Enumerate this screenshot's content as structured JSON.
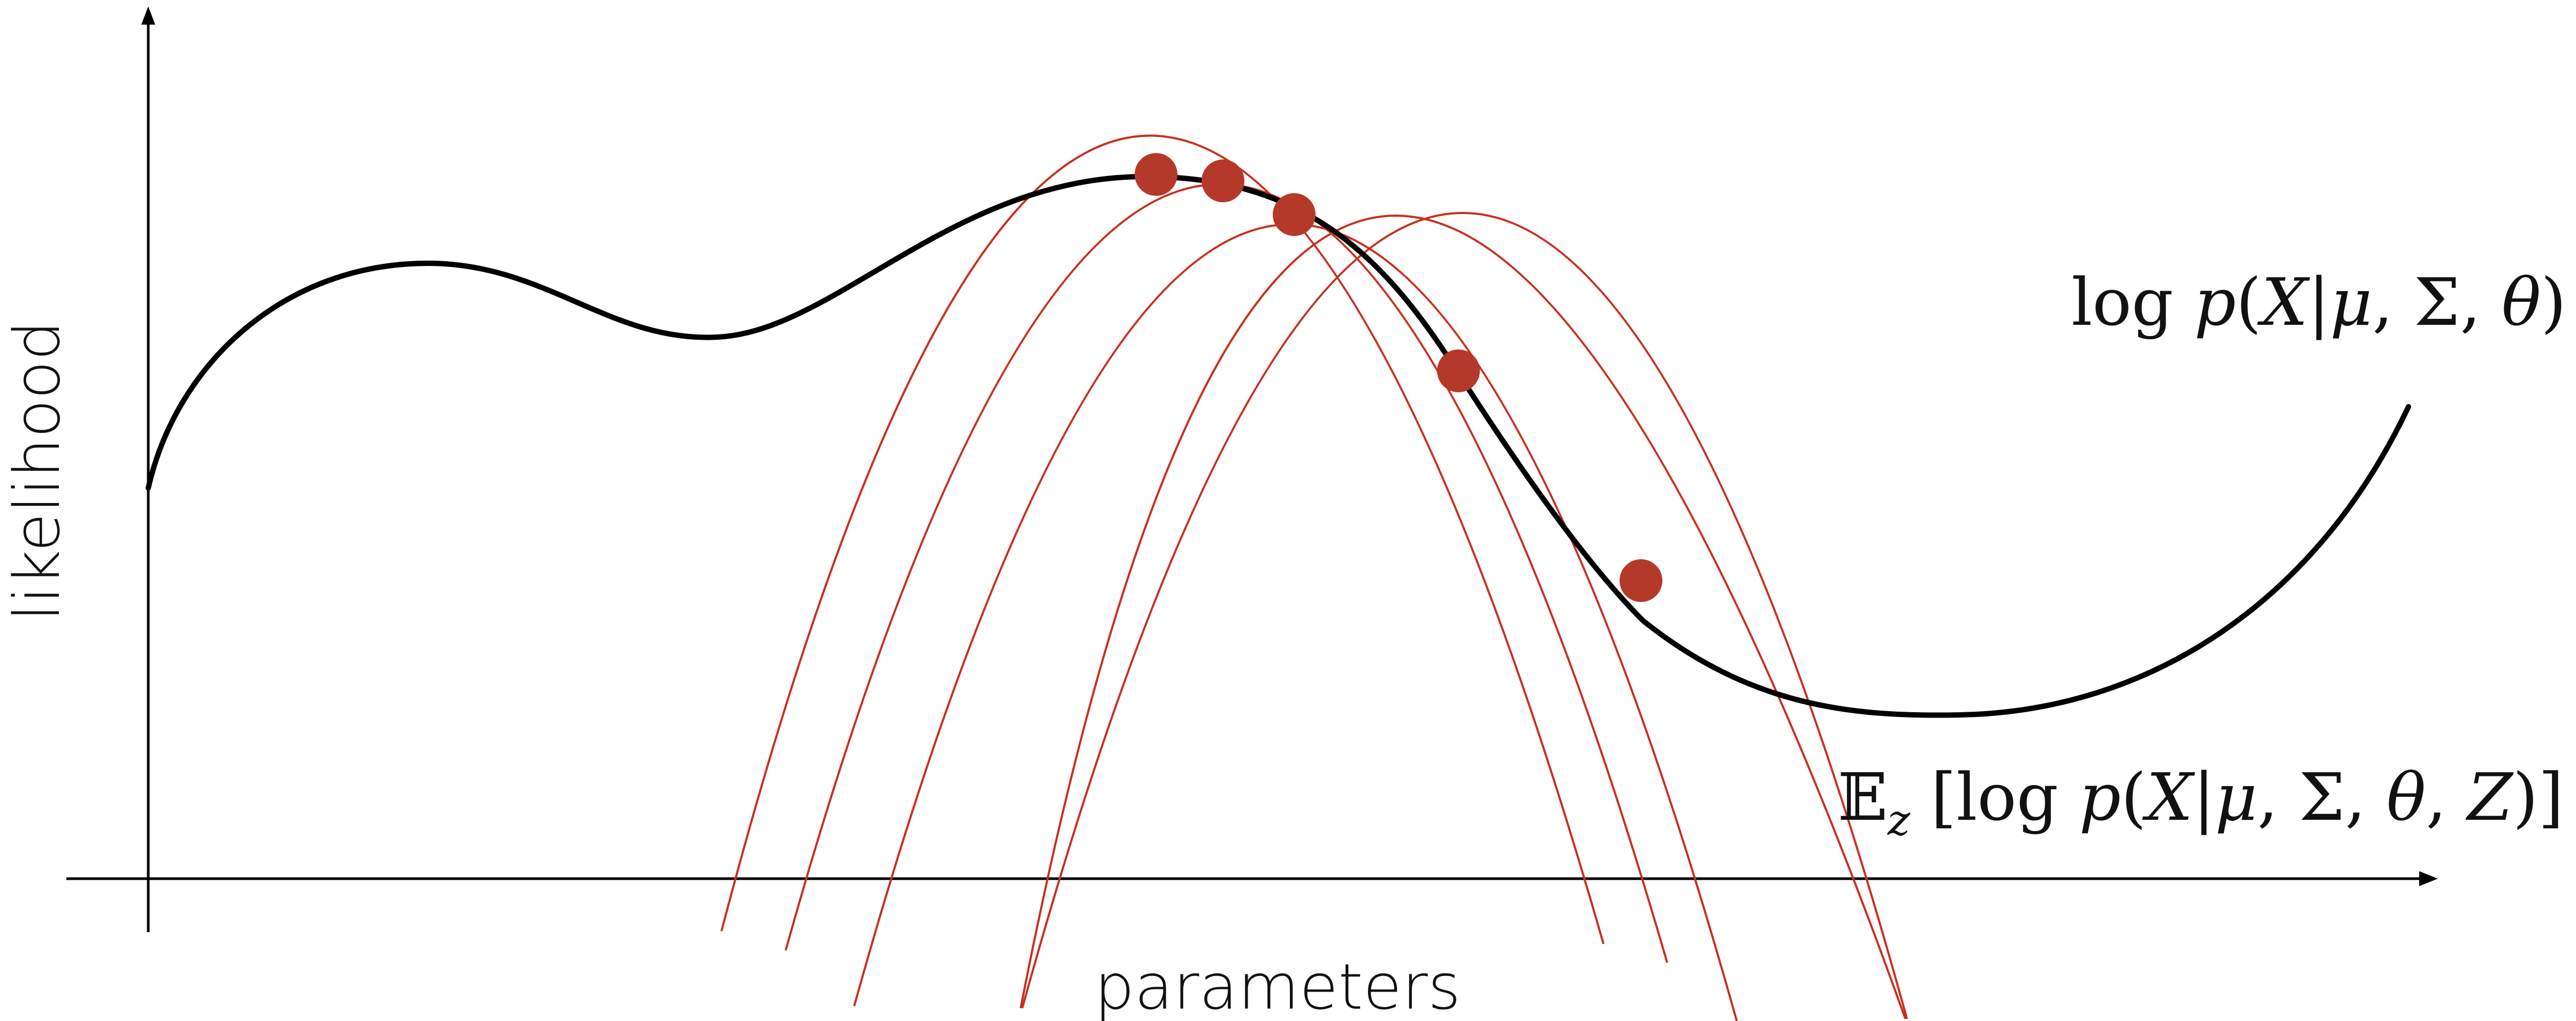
{
  "axes": {
    "x_label": "parameters",
    "y_label": "likelihood"
  },
  "curves": {
    "main": {
      "label_prefix": "log ",
      "label_p": "p",
      "label_open": "(",
      "label_x": "X",
      "label_bar": "|",
      "label_mu": "μ",
      "label_comma1": ", ",
      "label_sigma": "Σ",
      "label_comma2": ", ",
      "label_theta": "θ",
      "label_close": ")",
      "color": "#000000"
    },
    "lower_bound": {
      "label_e": "𝔼",
      "label_sub": "z",
      "label_bracket_open": " [log ",
      "label_p": "p",
      "label_open": "(",
      "label_x": "X",
      "label_bar": "|",
      "label_mu": "μ",
      "label_comma1": ", ",
      "label_sigma": "Σ",
      "label_comma2": ", ",
      "label_theta": "θ",
      "label_comma3": ", ",
      "label_z": "Z",
      "label_close": ")]",
      "color": "#c7311f",
      "count": 5
    }
  },
  "iterations": {
    "count": 5,
    "color": "#b5392b"
  }
}
